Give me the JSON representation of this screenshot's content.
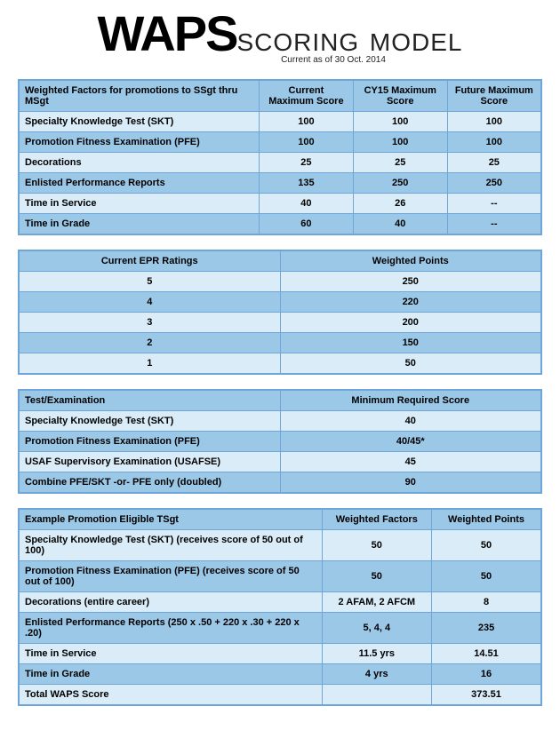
{
  "title": {
    "main": "WAPS",
    "sub": "SCORING MODEL",
    "asof": "Current as of 30 Oct. 2014"
  },
  "colors": {
    "border": "#6ea6d9",
    "header_bg": "#9cc8e8",
    "row_light": "#d9ecf7",
    "row_dark": "#9cc8e8",
    "text": "#000000"
  },
  "table1": {
    "headers": [
      "Weighted Factors for promotions to SSgt thru MSgt",
      "Current Maximum Score",
      "CY15 Maximum Score",
      "Future Maximum Score"
    ],
    "rows": [
      [
        "Specialty Knowledge Test (SKT)",
        "100",
        "100",
        "100"
      ],
      [
        "Promotion Fitness Examination (PFE)",
        "100",
        "100",
        "100"
      ],
      [
        "Decorations",
        "25",
        "25",
        "25"
      ],
      [
        "Enlisted Performance Reports",
        "135",
        "250",
        "250"
      ],
      [
        "Time in Service",
        "40",
        "26",
        "--"
      ],
      [
        "Time in Grade",
        "60",
        "40",
        "--"
      ]
    ]
  },
  "table2": {
    "headers": [
      "Current EPR Ratings",
      "Weighted Points"
    ],
    "rows": [
      [
        "5",
        "250"
      ],
      [
        "4",
        "220"
      ],
      [
        "3",
        "200"
      ],
      [
        "2",
        "150"
      ],
      [
        "1",
        "50"
      ]
    ]
  },
  "table3": {
    "headers": [
      "Test/Examination",
      "Minimum Required Score"
    ],
    "rows": [
      [
        "Specialty Knowledge Test (SKT)",
        "40"
      ],
      [
        "Promotion Fitness Examination (PFE)",
        "40/45*"
      ],
      [
        "USAF Supervisory Examination (USAFSE)",
        "45"
      ],
      [
        "Combine PFE/SKT -or- PFE only (doubled)",
        "90"
      ]
    ]
  },
  "table4": {
    "headers": [
      "Example Promotion Eligible TSgt",
      "Weighted Factors",
      "Weighted Points"
    ],
    "rows": [
      [
        "Specialty Knowledge Test (SKT)  (receives score of 50 out of 100)",
        "50",
        "50"
      ],
      [
        "Promotion Fitness Examination (PFE) (receives score of 50 out of 100)",
        "50",
        "50"
      ],
      [
        "Decorations (entire career)",
        "2 AFAM, 2 AFCM",
        "8"
      ],
      [
        "Enlisted Performance Reports (250 x .50 + 220 x .30 + 220 x .20)",
        "5, 4, 4",
        "235"
      ],
      [
        "Time in Service",
        "11.5 yrs",
        "14.51"
      ],
      [
        "Time in Grade",
        "4 yrs",
        "16"
      ],
      [
        "Total WAPS Score",
        "",
        "373.51"
      ]
    ]
  }
}
